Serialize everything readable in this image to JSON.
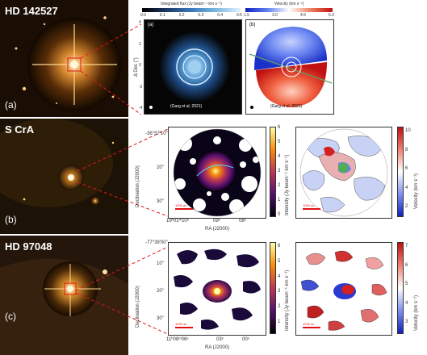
{
  "targets": [
    {
      "name": "HD 142527",
      "tag": "(a)"
    },
    {
      "name": "S CrA",
      "tag": "(b)"
    },
    {
      "name": "HD 97048",
      "tag": "(c)"
    }
  ],
  "row_a": {
    "flux_cbar_title": "Integrated flux (Jy beam⁻¹ km s⁻¹)",
    "flux_ticks": [
      "0.0",
      "0.1",
      "0.2",
      "0.3",
      "0.4",
      "0.5"
    ],
    "vel_cbar_title": "Velocity (km s⁻¹)",
    "vel_ticks": [
      "1.5",
      "3.0",
      "4.5",
      "6.0"
    ],
    "left_tag": "(a)",
    "right_tag": "(b)",
    "credit": "(Garg et al. 2021)",
    "ylabel": "Δ Dec (\")",
    "yticks": [
      "4",
      "2",
      "0",
      "-2",
      "-4"
    ]
  },
  "row_b": {
    "dec_ticks": [
      "-36°57'10\"",
      "20\"",
      "30\""
    ],
    "ra_ticks": [
      "19ʰ01ᵐ10ˢ",
      "09ˢ",
      "08ˢ"
    ],
    "ylabel": "Declination (J2000)",
    "xlabel": "RA (J2000)",
    "int_cbar_label": "Intensity (Jy beam⁻¹ km s⁻¹)",
    "int_ticks": [
      "6",
      "5",
      "4",
      "3",
      "2",
      "1",
      "0"
    ],
    "vel_cbar_label": "Velocity (km s⁻¹)",
    "vel_ticks": [
      "10",
      "8",
      "6",
      "4",
      "2"
    ],
    "scale": "1000 au"
  },
  "row_c": {
    "dec_ticks": [
      "-77°39'00\"",
      "10\"",
      "20\"",
      "30\""
    ],
    "ra_ticks": [
      "11ʰ08ᵐ06ˢ",
      "03ˢ",
      "00ˢ"
    ],
    "ylabel": "Declination (J2000)",
    "xlabel": "RA (J2000)",
    "int_cbar_label": "Intensity (Jy beam⁻¹ km s⁻¹)",
    "int_ticks": [
      "6",
      "5",
      "4",
      "3",
      "2",
      "1"
    ],
    "vel_cbar_label": "Velocity (km s⁻¹)",
    "vel_ticks": [
      "7",
      "6",
      "5",
      "4",
      "3"
    ],
    "scale": "1000 au"
  },
  "colors": {
    "zoom_line": "#e01818",
    "red_cmap": "#d42020",
    "blue_cmap": "#2030d0"
  }
}
